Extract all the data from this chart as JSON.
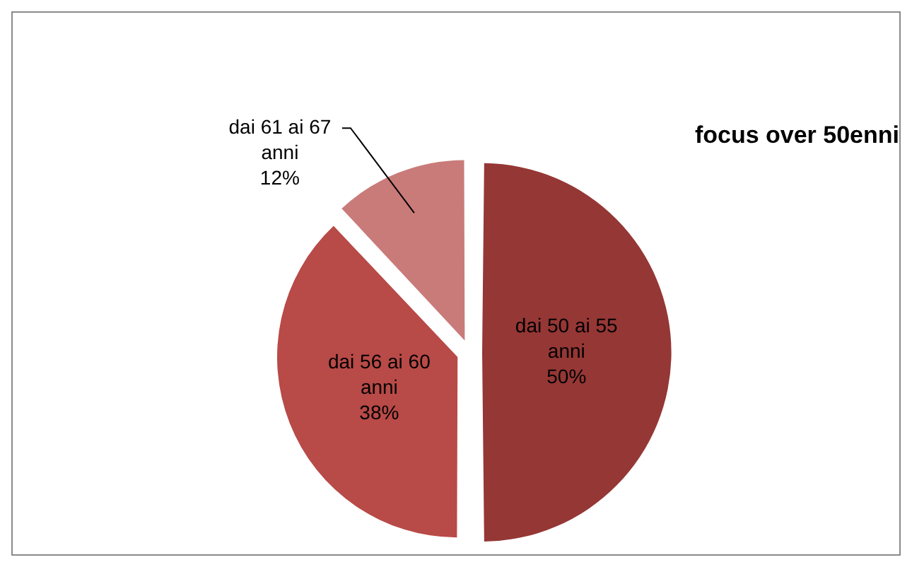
{
  "chart_data": {
    "type": "pie",
    "title": "focus over 50enni",
    "categories": [
      "dai 50 ai 55 anni",
      "dai 56 ai 60 anni",
      "dai 61 ai 67 anni"
    ],
    "values": [
      50,
      38,
      12
    ],
    "colors": [
      "#953735",
      "#b84a47",
      "#c97b79"
    ],
    "value_labels": [
      "50%",
      "38%",
      "12%"
    ],
    "legend": false
  }
}
